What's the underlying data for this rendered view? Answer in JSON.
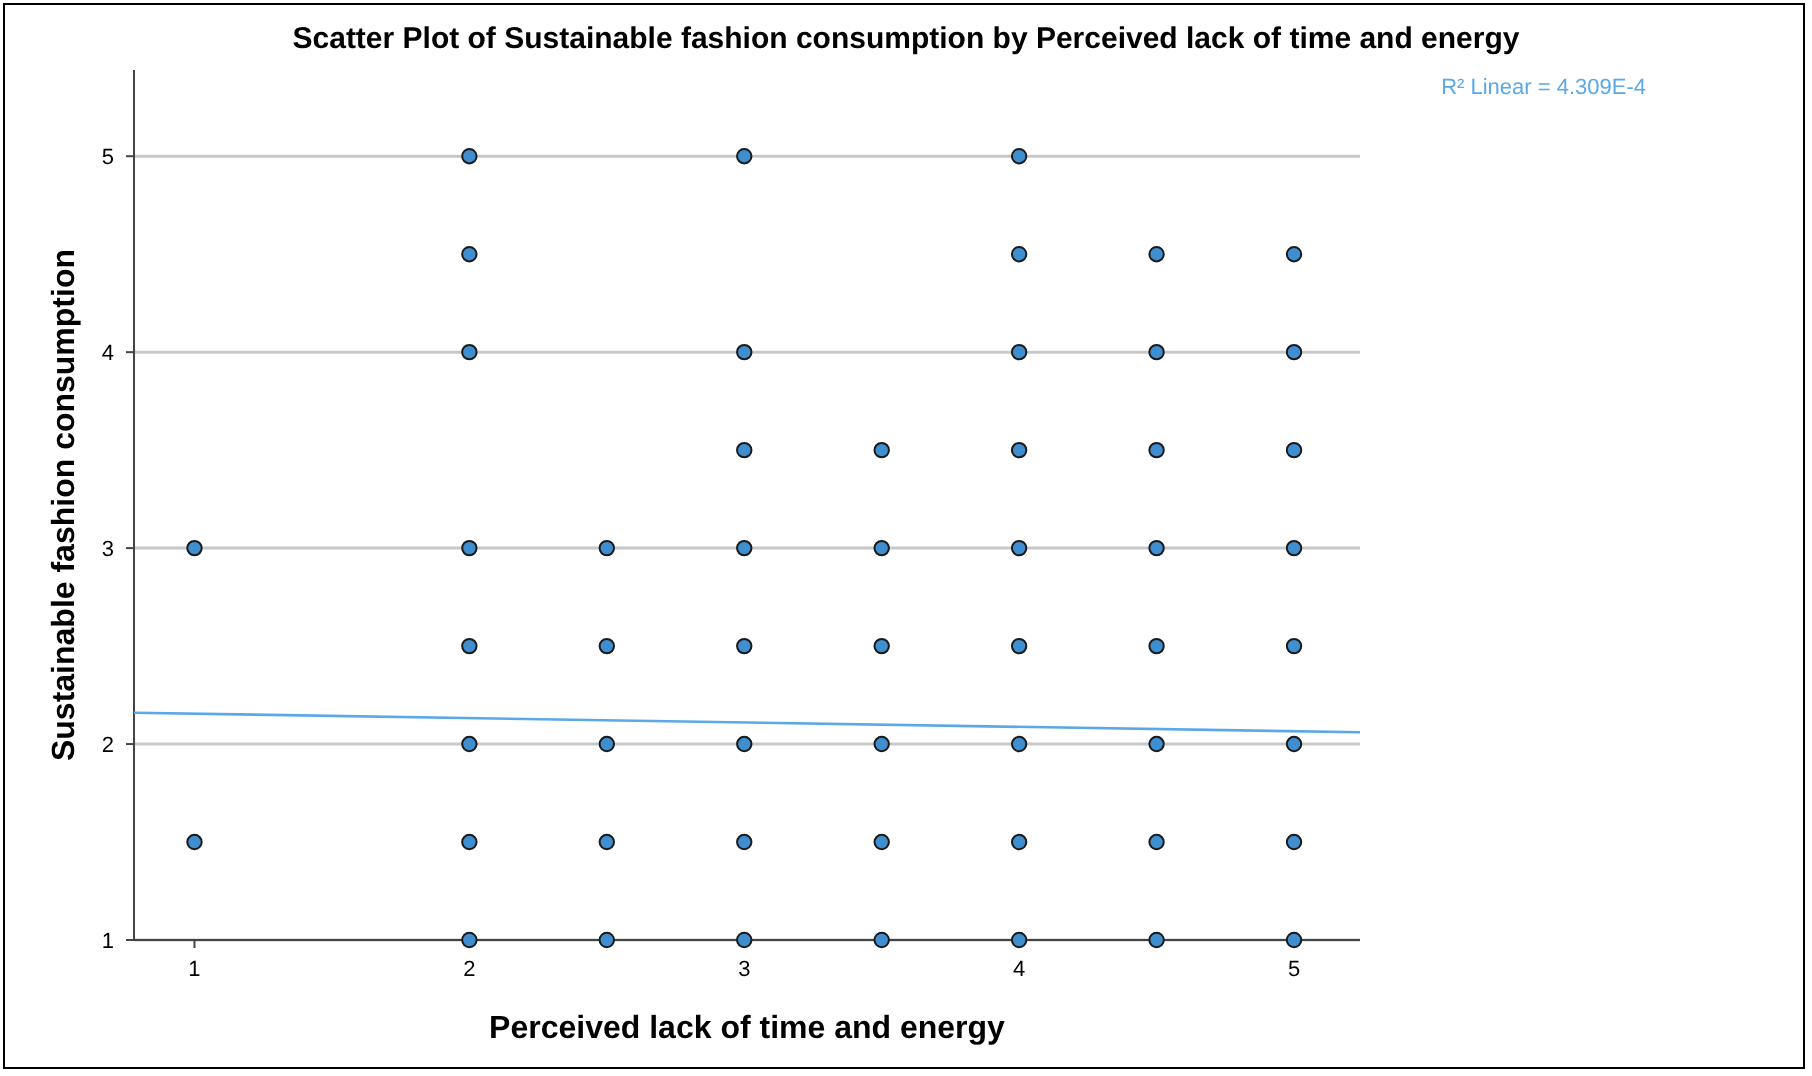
{
  "chart_data": {
    "type": "scatter",
    "title": "Scatter Plot of Sustainable fashion consumption by Perceived lack of time and energy",
    "xlabel": "Perceived lack of time and energy",
    "ylabel": "Sustainable fashion consumption",
    "annotations": [
      "R² Linear = 4.309E-4"
    ],
    "xlim": [
      0.78,
      5.24
    ],
    "ylim": [
      1,
      5.44
    ],
    "xticks": [
      1,
      2,
      3,
      4,
      5
    ],
    "yticks": [
      1,
      2,
      3,
      4,
      5
    ],
    "grid": "y",
    "series": [
      {
        "marker": "circle",
        "color": "#3e8ed0",
        "x": [
          1,
          1,
          2,
          2,
          2,
          2,
          2,
          2,
          2,
          2,
          2.5,
          2.5,
          2.5,
          2.5,
          2.5,
          3,
          3,
          3,
          3,
          3,
          3,
          3,
          3,
          3.5,
          3.5,
          3.5,
          3.5,
          3.5,
          3.5,
          4,
          4,
          4,
          4,
          4,
          4,
          4,
          4,
          4,
          4.5,
          4.5,
          4.5,
          4.5,
          4.5,
          4.5,
          4.5,
          4.5,
          5,
          5,
          5,
          5,
          5,
          5,
          5,
          5
        ],
        "values": [
          3,
          1.5,
          5,
          4.5,
          4,
          3,
          2.5,
          2,
          1.5,
          1,
          3,
          2.5,
          2,
          1.5,
          1,
          5,
          4,
          3.5,
          3,
          2.5,
          2,
          1.5,
          1,
          3.5,
          3,
          2.5,
          2,
          1.5,
          1,
          5,
          4.5,
          4,
          3.5,
          3,
          2.5,
          2,
          1.5,
          1,
          4.5,
          4,
          3.5,
          3,
          2.5,
          2,
          1.5,
          1,
          4.5,
          4,
          3.5,
          3,
          2.5,
          2,
          1.5,
          1
        ]
      },
      {
        "type": "line",
        "color": "#5aa8e8",
        "x": [
          0.78,
          5.24
        ],
        "values": [
          2.16,
          2.06
        ]
      }
    ]
  }
}
